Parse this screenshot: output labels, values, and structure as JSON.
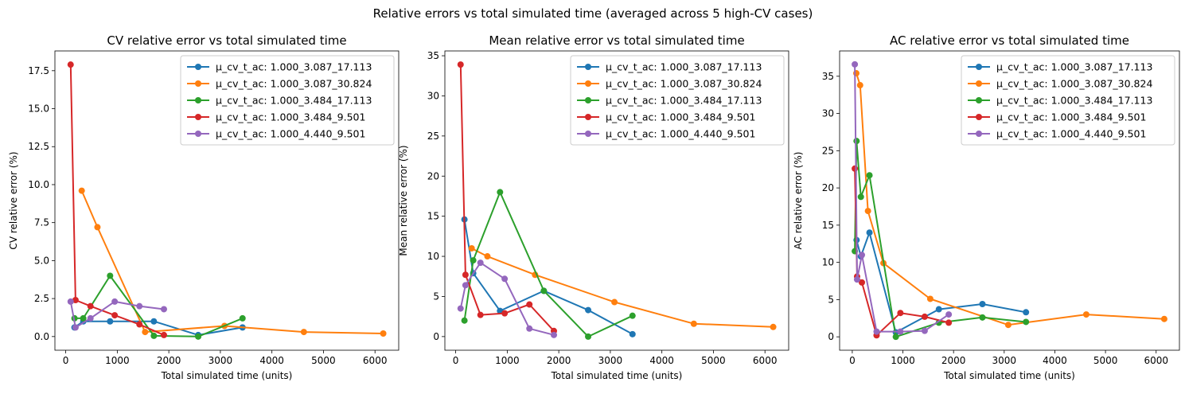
{
  "suptitle": "Relative errors vs total simulated time (averaged across 5 high-CV cases)",
  "colors": [
    "#1f77b4",
    "#ff7f0e",
    "#2ca02c",
    "#d62728",
    "#9467bd"
  ],
  "legend_labels": [
    "μ_cv_t_ac: 1.000_3.087_17.113",
    "μ_cv_t_ac: 1.000_3.087_30.824",
    "μ_cv_t_ac: 1.000_3.484_17.113",
    "μ_cv_t_ac: 1.000_3.484_9.501",
    "μ_cv_t_ac: 1.000_4.440_9.501"
  ],
  "chart_data": [
    {
      "type": "line",
      "title": "CV relative error vs total simulated time",
      "xlabel": "Total simulated time (units)",
      "ylabel": "CV relative error (%)",
      "xlim": [
        -210,
        6460
      ],
      "ylim": [
        -0.9,
        18.8
      ],
      "xticks": [
        0,
        1000,
        2000,
        3000,
        4000,
        5000,
        6000
      ],
      "yticks": [
        0.0,
        2.5,
        5.0,
        7.5,
        10.0,
        12.5,
        15.0,
        17.5
      ],
      "ytick_labels": [
        "0.0",
        "2.5",
        "5.0",
        "7.5",
        "10.0",
        "12.5",
        "15.0",
        "17.5"
      ],
      "legend": "top-right",
      "series": [
        {
          "name": "μ_cv_t_ac: 1.000_3.087_17.113",
          "x": [
            170,
            340,
            860,
            1710,
            2570,
            3430
          ],
          "y": [
            0.6,
            1.0,
            1.0,
            1.0,
            0.1,
            0.6
          ]
        },
        {
          "name": "μ_cv_t_ac: 1.000_3.087_30.824",
          "x": [
            310,
            615,
            1540,
            3080,
            4620,
            6160
          ],
          "y": [
            9.6,
            7.2,
            0.3,
            0.7,
            0.3,
            0.2
          ]
        },
        {
          "name": "μ_cv_t_ac: 1.000_3.484_17.113",
          "x": [
            170,
            340,
            860,
            1710,
            2570,
            3430
          ],
          "y": [
            1.2,
            1.2,
            4.0,
            0.05,
            0.0,
            1.2
          ]
        },
        {
          "name": "μ_cv_t_ac: 1.000_3.484_9.501",
          "x": [
            95,
            190,
            480,
            950,
            1430,
            1905
          ],
          "y": [
            17.9,
            2.4,
            2.0,
            1.4,
            0.8,
            0.1
          ]
        },
        {
          "name": "μ_cv_t_ac: 1.000_4.440_9.501",
          "x": [
            95,
            190,
            480,
            950,
            1430,
            1905
          ],
          "y": [
            2.3,
            0.6,
            1.2,
            2.3,
            2.0,
            1.8
          ]
        }
      ]
    },
    {
      "type": "line",
      "title": "Mean relative error vs total simulated time",
      "xlabel": "Total simulated time (units)",
      "ylabel": "Mean relative error (%)",
      "xlim": [
        -210,
        6460
      ],
      "ylim": [
        -1.7,
        35.6
      ],
      "xticks": [
        0,
        1000,
        2000,
        3000,
        4000,
        5000,
        6000
      ],
      "yticks": [
        0,
        5,
        10,
        15,
        20,
        25,
        30,
        35
      ],
      "ytick_labels": [
        "0",
        "5",
        "10",
        "15",
        "20",
        "25",
        "30",
        "35"
      ],
      "legend": "top-right",
      "series": [
        {
          "name": "μ_cv_t_ac: 1.000_3.087_17.113",
          "x": [
            170,
            340,
            860,
            1710,
            2570,
            3430
          ],
          "y": [
            14.6,
            7.9,
            3.2,
            5.7,
            3.3,
            0.3
          ]
        },
        {
          "name": "μ_cv_t_ac: 1.000_3.087_30.824",
          "x": [
            310,
            615,
            1540,
            3080,
            4620,
            6160
          ],
          "y": [
            11.0,
            10.0,
            7.7,
            4.3,
            1.6,
            1.2
          ]
        },
        {
          "name": "μ_cv_t_ac: 1.000_3.484_17.113",
          "x": [
            170,
            340,
            860,
            1710,
            2570,
            3430
          ],
          "y": [
            2.0,
            9.5,
            18.0,
            5.7,
            0.0,
            2.6
          ]
        },
        {
          "name": "μ_cv_t_ac: 1.000_3.484_9.501",
          "x": [
            95,
            190,
            480,
            950,
            1430,
            1905
          ],
          "y": [
            33.9,
            7.7,
            2.7,
            2.9,
            4.0,
            0.7
          ]
        },
        {
          "name": "μ_cv_t_ac: 1.000_4.440_9.501",
          "x": [
            95,
            190,
            480,
            950,
            1430,
            1905
          ],
          "y": [
            3.5,
            6.4,
            9.2,
            7.2,
            1.0,
            0.2
          ]
        }
      ]
    },
    {
      "type": "line",
      "title": "AC relative error vs total simulated time",
      "xlabel": "Total simulated time (units)",
      "ylabel": "AC relative error (%)",
      "xlim": [
        -250,
        6460
      ],
      "ylim": [
        -1.8,
        38.4
      ],
      "xticks": [
        0,
        1000,
        2000,
        3000,
        4000,
        5000,
        6000
      ],
      "yticks": [
        0,
        5,
        10,
        15,
        20,
        25,
        30,
        35
      ],
      "ytick_labels": [
        "0",
        "5",
        "10",
        "15",
        "20",
        "25",
        "30",
        "35"
      ],
      "legend": "top-right",
      "series": [
        {
          "name": "μ_cv_t_ac: 1.000_3.087_17.113",
          "x": [
            85,
            170,
            340,
            860,
            1710,
            2570,
            3430
          ],
          "y": [
            13.0,
            10.8,
            14.0,
            0.6,
            3.7,
            4.4,
            3.3
          ]
        },
        {
          "name": "μ_cv_t_ac: 1.000_3.087_30.824",
          "x": [
            80,
            155,
            310,
            615,
            1540,
            3080,
            4620,
            6160
          ],
          "y": [
            35.4,
            33.8,
            16.9,
            9.9,
            5.1,
            1.6,
            3.0,
            2.4
          ]
        },
        {
          "name": "μ_cv_t_ac: 1.000_3.484_17.113",
          "x": [
            50,
            85,
            170,
            340,
            860,
            1710,
            2570,
            3430
          ],
          "y": [
            11.5,
            26.3,
            18.8,
            21.7,
            0.0,
            1.9,
            2.6,
            2.0
          ]
        },
        {
          "name": "μ_cv_t_ac: 1.000_3.484_9.501",
          "x": [
            50,
            95,
            190,
            480,
            950,
            1430,
            1905
          ],
          "y": [
            22.6,
            8.1,
            7.3,
            0.2,
            3.2,
            2.7,
            1.9
          ]
        },
        {
          "name": "μ_cv_t_ac: 1.000_4.440_9.501",
          "x": [
            50,
            95,
            190,
            480,
            950,
            1430,
            1905
          ],
          "y": [
            36.6,
            7.7,
            11.0,
            0.7,
            0.7,
            0.8,
            3.0
          ]
        }
      ]
    }
  ]
}
